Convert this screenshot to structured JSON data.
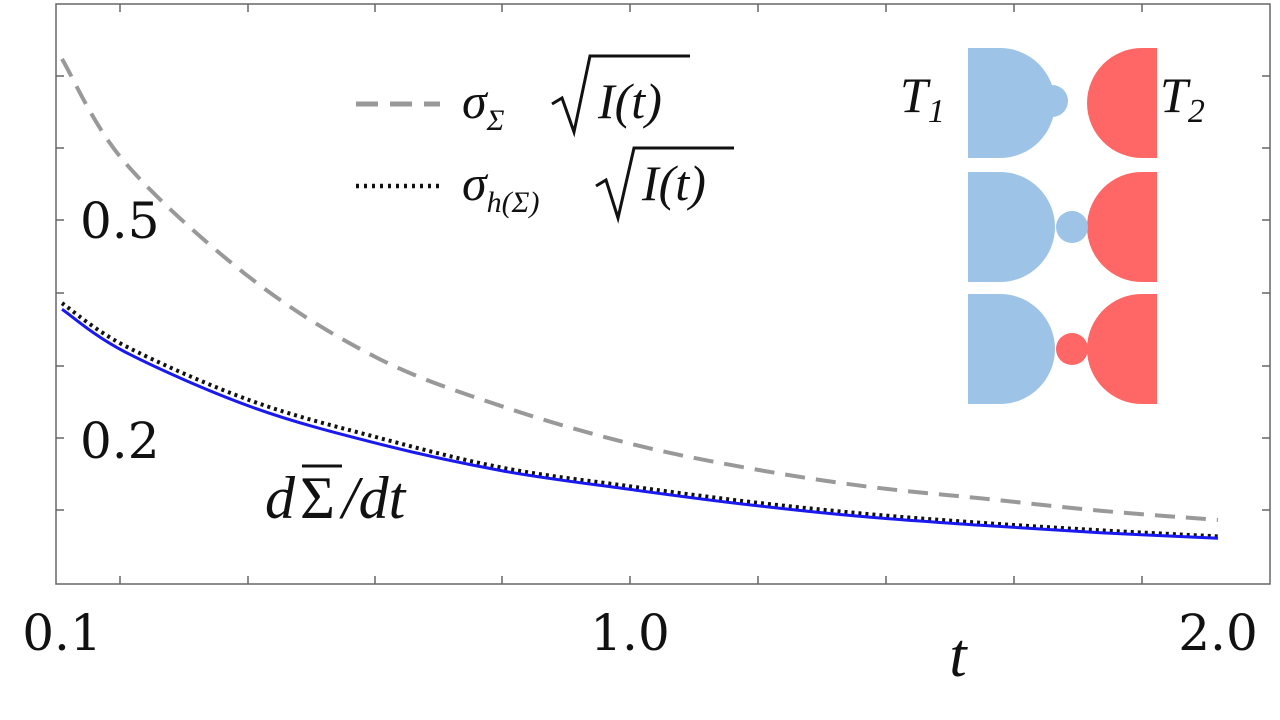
{
  "chart_data": {
    "type": "line",
    "xlabel": "t",
    "x_tick_labels": [
      "0.1",
      "1.0",
      "2.0"
    ],
    "y_tick_labels": [
      "0.5",
      "0.2"
    ],
    "grid": false,
    "legend_placement": "top-center",
    "series": [
      {
        "legend_label": "σ_Σ √I(t)",
        "style": "dashed",
        "color": "#999999",
        "x": [
          0.1,
          0.2,
          0.4,
          0.6,
          0.8,
          1.0,
          1.2,
          1.4,
          1.6,
          1.8,
          2.0
        ],
        "y": [
          0.86,
          0.69,
          0.5,
          0.37,
          0.29,
          0.23,
          0.19,
          0.16,
          0.14,
          0.12,
          0.105
        ]
      },
      {
        "legend_label": "σ_h(Σ) √I(t)",
        "style": "dotted",
        "color": "#111111",
        "x": [
          0.1,
          0.2,
          0.4,
          0.6,
          0.8,
          1.0,
          1.2,
          1.4,
          1.6,
          1.8,
          2.0
        ],
        "y": [
          0.46,
          0.39,
          0.3,
          0.24,
          0.19,
          0.16,
          0.135,
          0.115,
          0.1,
          0.088,
          0.078
        ]
      },
      {
        "annotation": "dΣ̄/dt",
        "style": "solid",
        "color": "#1a1aee",
        "x": [
          0.1,
          0.2,
          0.4,
          0.6,
          0.8,
          1.0,
          1.2,
          1.4,
          1.6,
          1.8,
          2.0
        ],
        "y": [
          0.45,
          0.38,
          0.29,
          0.23,
          0.185,
          0.155,
          0.13,
          0.11,
          0.096,
          0.084,
          0.075
        ]
      }
    ],
    "legend": {
      "dashed_main": "σ",
      "dashed_sub": "Σ",
      "dashed_arg": "I(t)",
      "dotted_main": "σ",
      "dotted_sub": "h(Σ)",
      "dotted_arg": "I(t)"
    },
    "annotation": {
      "prefix": "d",
      "symbol": "Σ",
      "suffix": "/dt"
    }
  },
  "inset": {
    "left_label": "T",
    "left_sub": "1",
    "right_label": "T",
    "right_sub": "2",
    "left_color": "#9dc3e6",
    "right_color": "#ff6666",
    "dots": [
      "#9dc3e6",
      "#9dc3e6",
      "#ff6666"
    ]
  }
}
